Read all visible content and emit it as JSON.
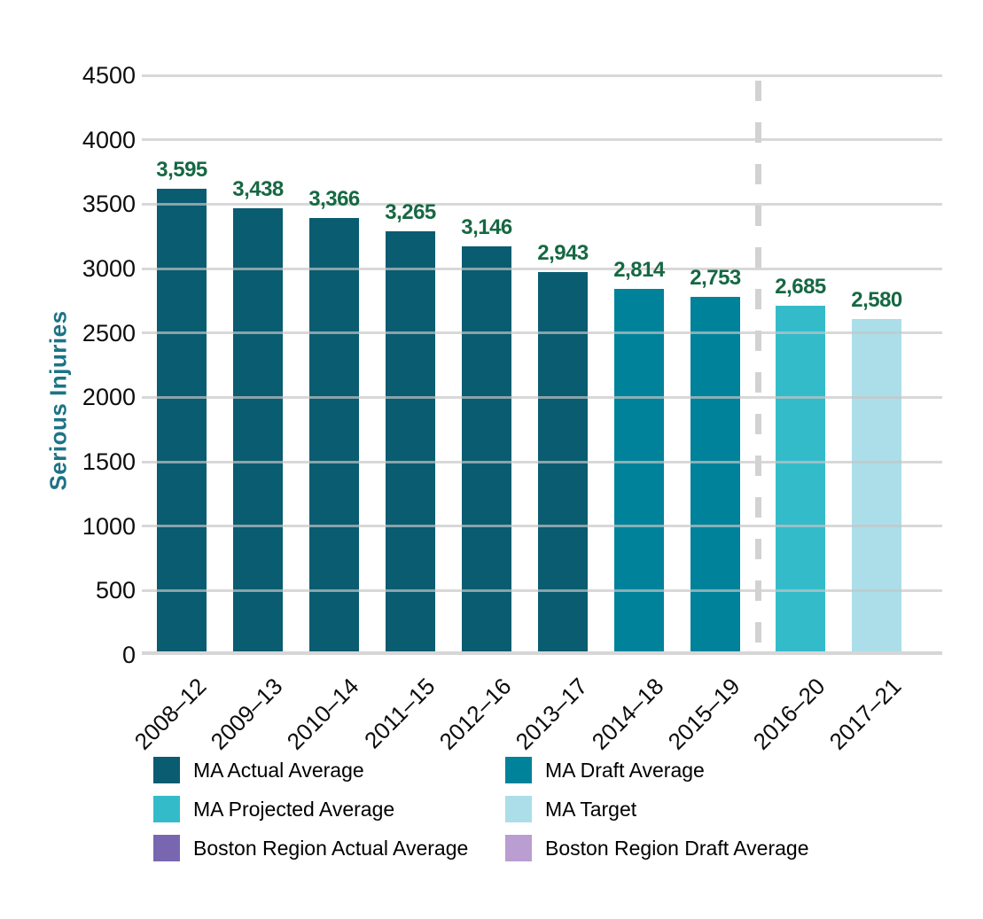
{
  "page": {
    "background": "#ffffff"
  },
  "chart_data": {
    "type": "bar",
    "title": "",
    "ylabel": "Serious Injuries",
    "xlabel": "",
    "ylim": [
      0,
      4500
    ],
    "ytick_step": 500,
    "grid": true,
    "legend_position": "bottom",
    "categories": [
      "2008–12",
      "2009–13",
      "2010–14",
      "2011–15",
      "2012–16",
      "2013–17",
      "2014–18",
      "2015–19",
      "2016–20",
      "2017–21"
    ],
    "values": [
      3595,
      3438,
      3366,
      3265,
      3146,
      2943,
      2814,
      2753,
      2685,
      2580
    ],
    "value_labels": [
      "3,595",
      "3,438",
      "3,366",
      "3,265",
      "3,146",
      "2,943",
      "2,814",
      "2,753",
      "2,685",
      "2,580"
    ],
    "bar_series": [
      "actual",
      "actual",
      "actual",
      "actual",
      "actual",
      "actual",
      "draft",
      "draft",
      "projected",
      "target"
    ],
    "series_colors": {
      "actual": "#0A5C70",
      "draft": "#00829A",
      "projected": "#34BBCA",
      "target": "#ACDEE9",
      "boston_actual": "#7867B0",
      "boston_draft": "#BA9DD1"
    },
    "divider_after_category": "2015–19",
    "value_label_color": "#166843",
    "axis_title_color": "#1D7386",
    "legend": [
      {
        "id": "ma-actual-average",
        "label": "MA Actual Average",
        "color": "#0A5C70"
      },
      {
        "id": "ma-draft-average",
        "label": "MA Draft Average",
        "color": "#00829A"
      },
      {
        "id": "ma-projected-average",
        "label": "MA Projected Average",
        "color": "#34BBCA"
      },
      {
        "id": "ma-target",
        "label": "MA Target",
        "color": "#ACDEE9"
      },
      {
        "id": "boston-region-actual-average",
        "label": "Boston Region Actual Average",
        "color": "#7867B0"
      },
      {
        "id": "boston-region-draft-average",
        "label": "Boston Region Draft Average",
        "color": "#BA9DD1"
      }
    ]
  }
}
